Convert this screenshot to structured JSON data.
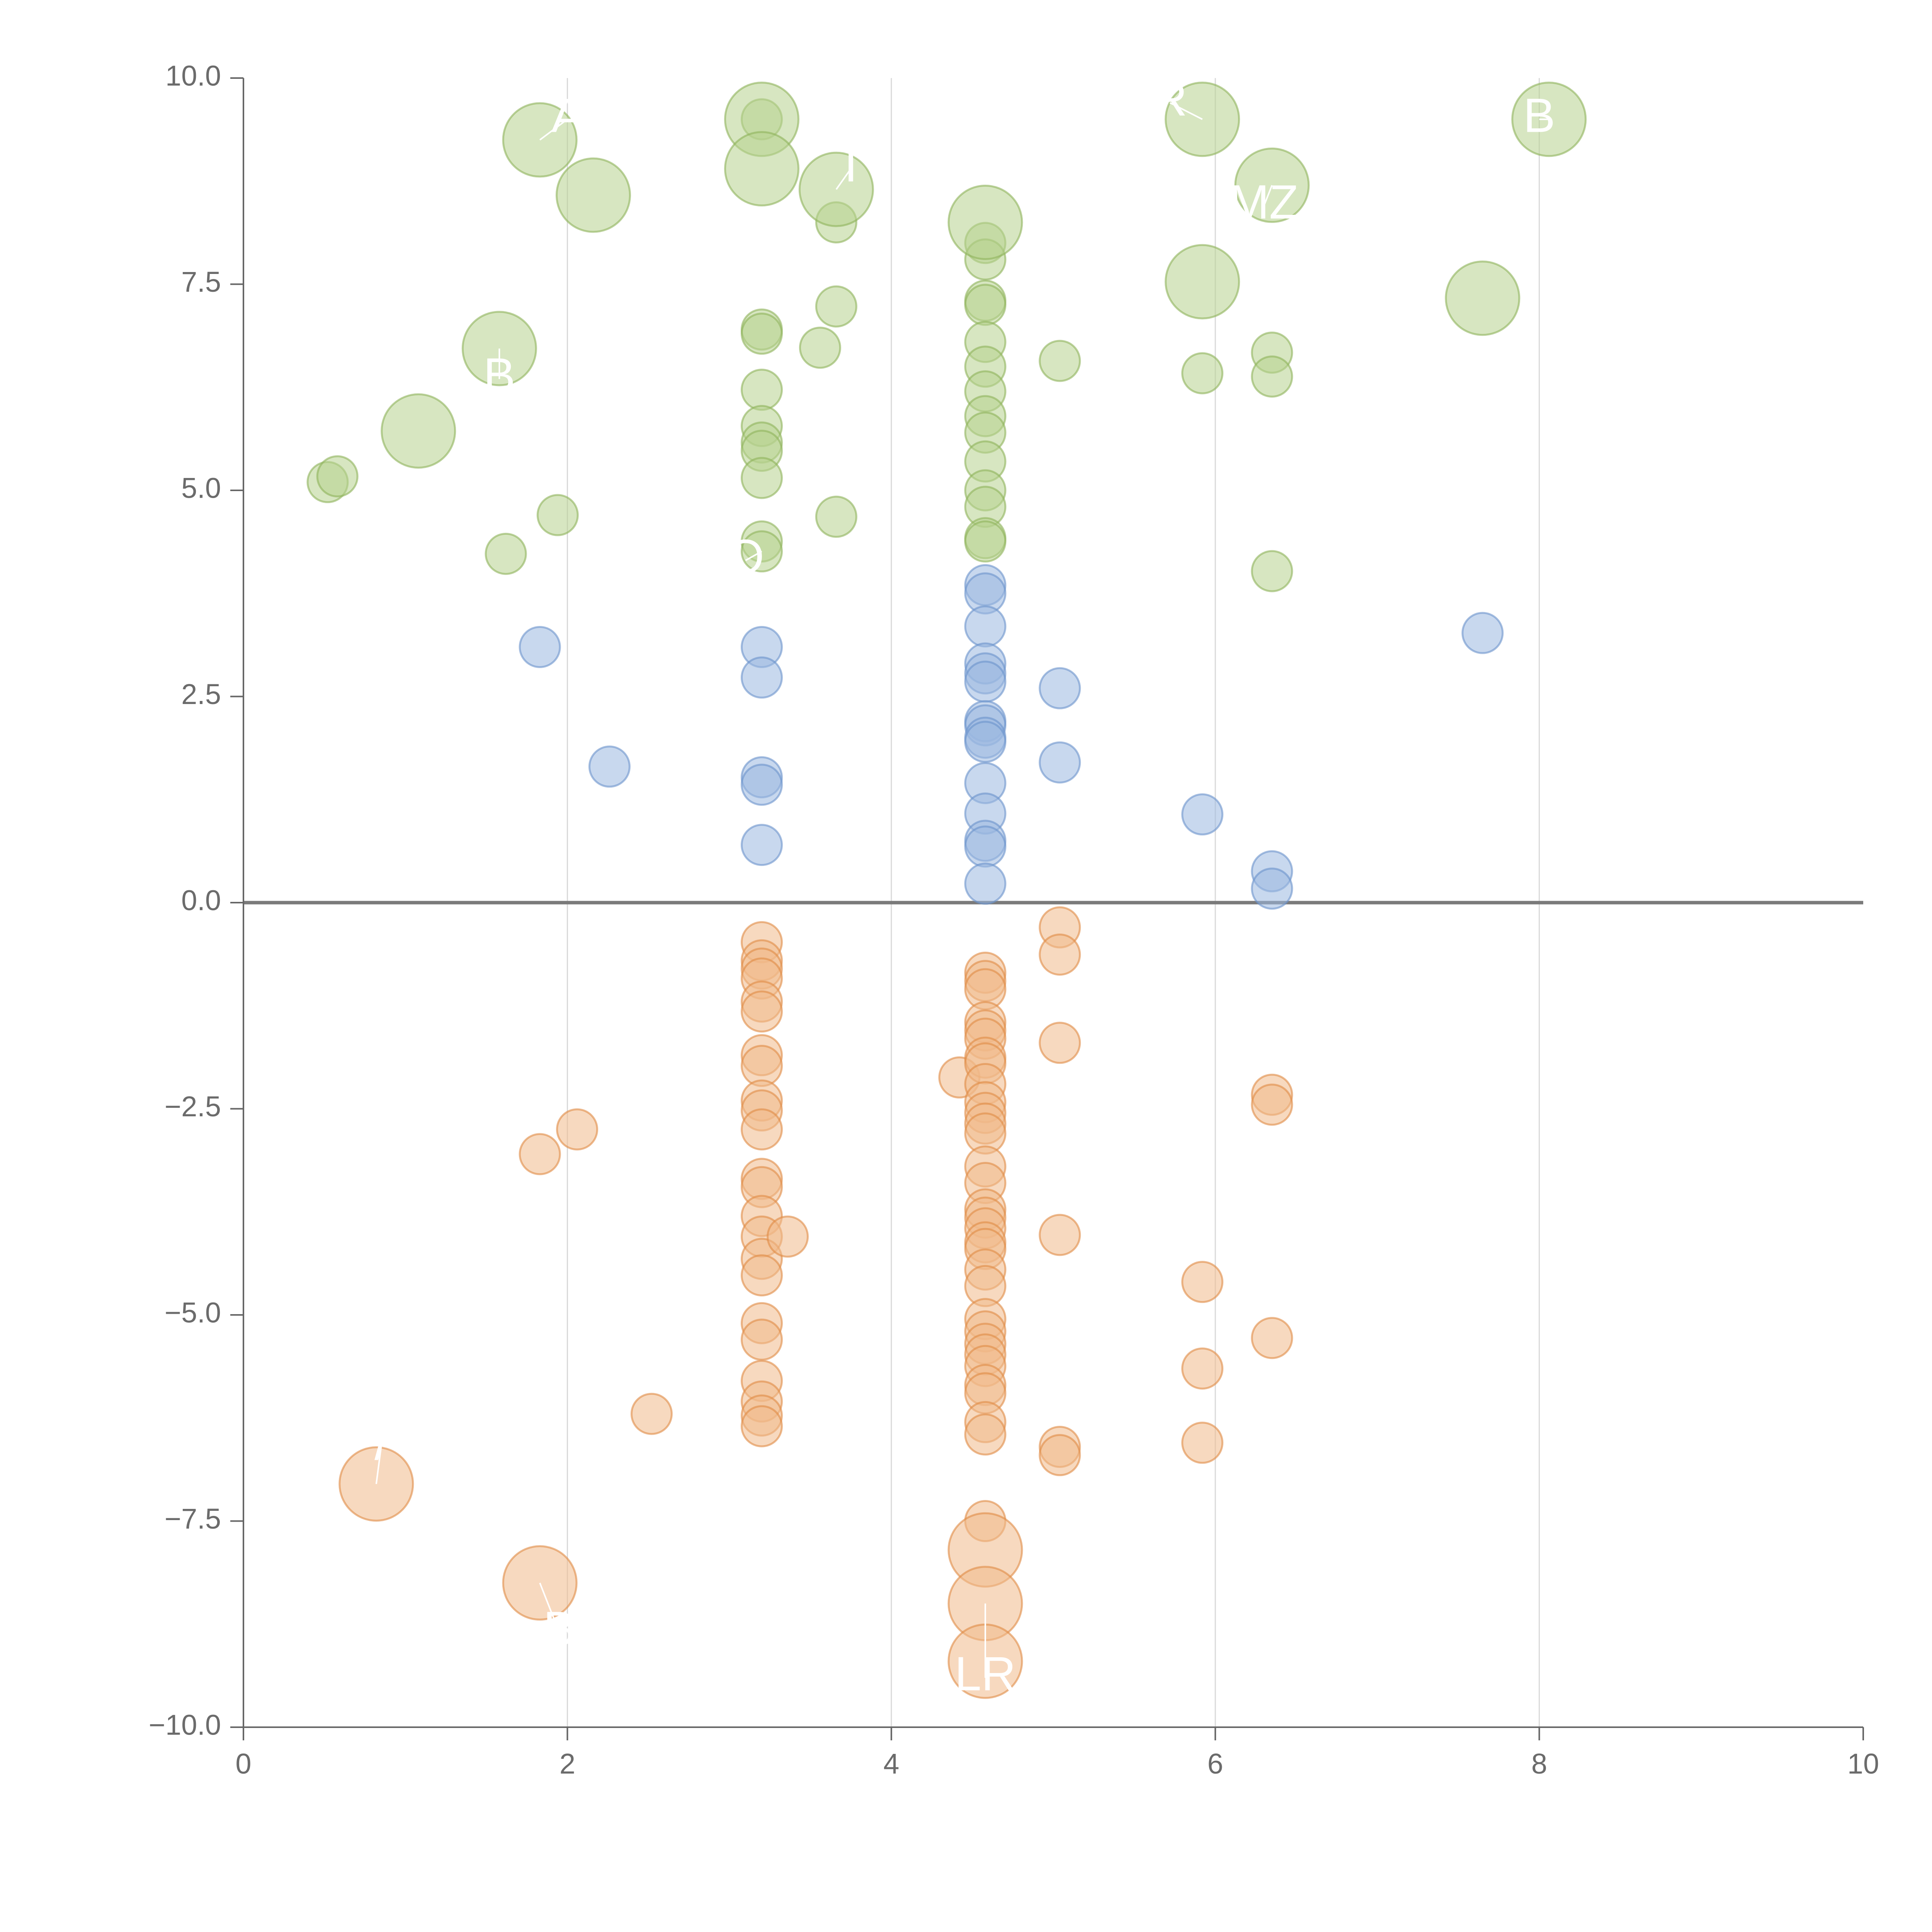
{
  "colors": {
    "background": "#ffffff",
    "axis": "#666666",
    "zero_line": "#7a7a7a",
    "grid": "#d9d9d9",
    "tick_text": "#6b6b6b",
    "label_text": "#ffffff",
    "leader_line": "#ffffff"
  },
  "chart_data": {
    "type": "scatter",
    "title": "",
    "xlabel": "",
    "ylabel": "",
    "xlim": [
      0,
      10
    ],
    "ylim": [
      -10,
      10
    ],
    "x_ticks": [
      0,
      2,
      4,
      6,
      8,
      10
    ],
    "x_tick_labels": [
      "0",
      "2",
      "4",
      "6",
      "8",
      "10"
    ],
    "y_ticks": [
      10,
      7.5,
      5,
      2.5,
      0,
      -2.5,
      -5,
      -7.5,
      -10
    ],
    "y_tick_labels": [
      "10.0",
      "7.5",
      "5.0",
      "2.5",
      "0.0",
      "−2.5",
      "−5.0",
      "−7.5",
      "−10.0"
    ],
    "vertical_gridlines_at": [
      2,
      4,
      6,
      8
    ],
    "zero_line": true,
    "legend": "none",
    "series": [
      {
        "name": "green",
        "color": "#8db35a",
        "fill": "#b7d28e",
        "points": [
          {
            "x": 1.83,
            "y": 9.25,
            "s": 2
          },
          {
            "x": 3.2,
            "y": 9.5,
            "s": 2
          },
          {
            "x": 3.2,
            "y": 8.9,
            "s": 2
          },
          {
            "x": 2.16,
            "y": 8.58,
            "s": 2
          },
          {
            "x": 3.66,
            "y": 8.65,
            "s": 2
          },
          {
            "x": 5.92,
            "y": 9.5,
            "s": 2
          },
          {
            "x": 8.06,
            "y": 9.5,
            "s": 2
          },
          {
            "x": 6.35,
            "y": 8.7,
            "s": 2
          },
          {
            "x": 4.58,
            "y": 8.25,
            "s": 2
          },
          {
            "x": 5.92,
            "y": 7.53,
            "s": 2
          },
          {
            "x": 7.65,
            "y": 7.33,
            "s": 2
          },
          {
            "x": 1.58,
            "y": 6.72,
            "s": 2
          },
          {
            "x": 1.08,
            "y": 5.72,
            "s": 2
          },
          {
            "x": 3.2,
            "y": 9.5,
            "s": 1
          },
          {
            "x": 3.66,
            "y": 8.25,
            "s": 1
          },
          {
            "x": 3.66,
            "y": 7.23,
            "s": 1
          },
          {
            "x": 3.56,
            "y": 6.73,
            "s": 1
          },
          {
            "x": 3.66,
            "y": 4.68,
            "s": 1
          },
          {
            "x": 3.2,
            "y": 6.95,
            "s": 1
          },
          {
            "x": 3.2,
            "y": 6.9,
            "s": 1
          },
          {
            "x": 3.2,
            "y": 6.22,
            "s": 1
          },
          {
            "x": 3.2,
            "y": 5.78,
            "s": 1
          },
          {
            "x": 3.2,
            "y": 5.58,
            "s": 1
          },
          {
            "x": 3.2,
            "y": 5.48,
            "s": 1
          },
          {
            "x": 3.2,
            "y": 5.15,
            "s": 1
          },
          {
            "x": 3.2,
            "y": 4.38,
            "s": 1
          },
          {
            "x": 3.2,
            "y": 4.26,
            "s": 1
          },
          {
            "x": 4.58,
            "y": 8.0,
            "s": 1
          },
          {
            "x": 4.58,
            "y": 7.8,
            "s": 1
          },
          {
            "x": 4.58,
            "y": 7.3,
            "s": 1
          },
          {
            "x": 4.58,
            "y": 7.25,
            "s": 1
          },
          {
            "x": 4.58,
            "y": 6.8,
            "s": 1
          },
          {
            "x": 4.58,
            "y": 6.5,
            "s": 1
          },
          {
            "x": 4.58,
            "y": 6.2,
            "s": 1
          },
          {
            "x": 4.58,
            "y": 5.9,
            "s": 1
          },
          {
            "x": 4.58,
            "y": 5.7,
            "s": 1
          },
          {
            "x": 4.58,
            "y": 5.35,
            "s": 1
          },
          {
            "x": 4.58,
            "y": 5.0,
            "s": 1
          },
          {
            "x": 4.58,
            "y": 4.8,
            "s": 1
          },
          {
            "x": 4.58,
            "y": 4.42,
            "s": 1
          },
          {
            "x": 4.58,
            "y": 4.38,
            "s": 1
          },
          {
            "x": 5.04,
            "y": 6.57,
            "s": 1
          },
          {
            "x": 5.92,
            "y": 6.42,
            "s": 1
          },
          {
            "x": 6.35,
            "y": 6.67,
            "s": 1
          },
          {
            "x": 6.35,
            "y": 6.38,
            "s": 1
          },
          {
            "x": 6.35,
            "y": 4.02,
            "s": 1
          },
          {
            "x": 1.94,
            "y": 4.7,
            "s": 1
          },
          {
            "x": 1.62,
            "y": 4.23,
            "s": 1
          },
          {
            "x": 0.52,
            "y": 5.1,
            "s": 1
          },
          {
            "x": 0.58,
            "y": 5.17,
            "s": 1
          }
        ]
      },
      {
        "name": "blue",
        "color": "#6a93cc",
        "fill": "#9ab8e0",
        "points": [
          {
            "x": 1.83,
            "y": 3.1,
            "s": 1
          },
          {
            "x": 2.26,
            "y": 1.65,
            "s": 1
          },
          {
            "x": 3.2,
            "y": 3.1,
            "s": 1
          },
          {
            "x": 3.2,
            "y": 2.73,
            "s": 1
          },
          {
            "x": 3.2,
            "y": 1.52,
            "s": 1
          },
          {
            "x": 3.2,
            "y": 1.43,
            "s": 1
          },
          {
            "x": 3.2,
            "y": 0.7,
            "s": 1
          },
          {
            "x": 4.58,
            "y": 3.85,
            "s": 1
          },
          {
            "x": 4.58,
            "y": 3.75,
            "s": 1
          },
          {
            "x": 4.58,
            "y": 3.35,
            "s": 1
          },
          {
            "x": 4.58,
            "y": 2.9,
            "s": 1
          },
          {
            "x": 4.58,
            "y": 2.78,
            "s": 1
          },
          {
            "x": 4.58,
            "y": 2.68,
            "s": 1
          },
          {
            "x": 4.58,
            "y": 2.2,
            "s": 1
          },
          {
            "x": 4.58,
            "y": 2.15,
            "s": 1
          },
          {
            "x": 4.58,
            "y": 2.0,
            "s": 1
          },
          {
            "x": 4.58,
            "y": 1.95,
            "s": 1
          },
          {
            "x": 4.58,
            "y": 1.45,
            "s": 1
          },
          {
            "x": 4.58,
            "y": 1.08,
            "s": 1
          },
          {
            "x": 4.58,
            "y": 0.75,
            "s": 1
          },
          {
            "x": 4.58,
            "y": 0.68,
            "s": 1
          },
          {
            "x": 4.58,
            "y": 0.23,
            "s": 1
          },
          {
            "x": 5.04,
            "y": 2.6,
            "s": 1
          },
          {
            "x": 5.04,
            "y": 1.7,
            "s": 1
          },
          {
            "x": 5.92,
            "y": 1.07,
            "s": 1
          },
          {
            "x": 6.35,
            "y": 0.38,
            "s": 1
          },
          {
            "x": 6.35,
            "y": 0.17,
            "s": 1
          },
          {
            "x": 7.65,
            "y": 3.27,
            "s": 1
          }
        ]
      },
      {
        "name": "orange",
        "color": "#e08a44",
        "fill": "#f0b98a",
        "points": [
          {
            "x": 0.82,
            "y": -7.05,
            "s": 2
          },
          {
            "x": 1.83,
            "y": -8.25,
            "s": 2
          },
          {
            "x": 4.58,
            "y": -7.85,
            "s": 2
          },
          {
            "x": 4.58,
            "y": -8.5,
            "s": 2
          },
          {
            "x": 4.58,
            "y": -9.2,
            "s": 2
          },
          {
            "x": 1.83,
            "y": -3.05,
            "s": 1
          },
          {
            "x": 2.06,
            "y": -2.75,
            "s": 1
          },
          {
            "x": 2.52,
            "y": -6.2,
            "s": 1
          },
          {
            "x": 3.2,
            "y": -0.48,
            "s": 1
          },
          {
            "x": 3.2,
            "y": -0.7,
            "s": 1
          },
          {
            "x": 3.2,
            "y": -0.8,
            "s": 1
          },
          {
            "x": 3.2,
            "y": -0.92,
            "s": 1
          },
          {
            "x": 3.2,
            "y": -1.2,
            "s": 1
          },
          {
            "x": 3.2,
            "y": -1.32,
            "s": 1
          },
          {
            "x": 3.2,
            "y": -1.85,
            "s": 1
          },
          {
            "x": 3.2,
            "y": -1.98,
            "s": 1
          },
          {
            "x": 3.2,
            "y": -2.4,
            "s": 1
          },
          {
            "x": 3.2,
            "y": -2.52,
            "s": 1
          },
          {
            "x": 3.2,
            "y": -2.75,
            "s": 1
          },
          {
            "x": 3.2,
            "y": -3.35,
            "s": 1
          },
          {
            "x": 3.2,
            "y": -3.45,
            "s": 1
          },
          {
            "x": 3.2,
            "y": -3.8,
            "s": 1
          },
          {
            "x": 3.2,
            "y": -4.05,
            "s": 1
          },
          {
            "x": 3.2,
            "y": -4.32,
            "s": 1
          },
          {
            "x": 3.2,
            "y": -4.52,
            "s": 1
          },
          {
            "x": 3.2,
            "y": -5.1,
            "s": 1
          },
          {
            "x": 3.2,
            "y": -5.3,
            "s": 1
          },
          {
            "x": 3.2,
            "y": -5.8,
            "s": 1
          },
          {
            "x": 3.2,
            "y": -6.05,
            "s": 1
          },
          {
            "x": 3.2,
            "y": -6.22,
            "s": 1
          },
          {
            "x": 3.2,
            "y": -6.35,
            "s": 1
          },
          {
            "x": 3.36,
            "y": -4.05,
            "s": 1
          },
          {
            "x": 4.42,
            "y": -2.12,
            "s": 1
          },
          {
            "x": 4.58,
            "y": -0.85,
            "s": 1
          },
          {
            "x": 4.58,
            "y": -0.95,
            "s": 1
          },
          {
            "x": 4.58,
            "y": -1.05,
            "s": 1
          },
          {
            "x": 4.58,
            "y": -1.45,
            "s": 1
          },
          {
            "x": 4.58,
            "y": -1.55,
            "s": 1
          },
          {
            "x": 4.58,
            "y": -1.65,
            "s": 1
          },
          {
            "x": 4.58,
            "y": -1.88,
            "s": 1
          },
          {
            "x": 4.58,
            "y": -1.95,
            "s": 1
          },
          {
            "x": 4.58,
            "y": -2.2,
            "s": 1
          },
          {
            "x": 4.58,
            "y": -2.42,
            "s": 1
          },
          {
            "x": 4.58,
            "y": -2.55,
            "s": 1
          },
          {
            "x": 4.58,
            "y": -2.68,
            "s": 1
          },
          {
            "x": 4.58,
            "y": -2.8,
            "s": 1
          },
          {
            "x": 4.58,
            "y": -3.2,
            "s": 1
          },
          {
            "x": 4.58,
            "y": -3.4,
            "s": 1
          },
          {
            "x": 4.58,
            "y": -3.72,
            "s": 1
          },
          {
            "x": 4.58,
            "y": -3.82,
            "s": 1
          },
          {
            "x": 4.58,
            "y": -3.95,
            "s": 1
          },
          {
            "x": 4.58,
            "y": -4.12,
            "s": 1
          },
          {
            "x": 4.58,
            "y": -4.2,
            "s": 1
          },
          {
            "x": 4.58,
            "y": -4.45,
            "s": 1
          },
          {
            "x": 4.58,
            "y": -4.65,
            "s": 1
          },
          {
            "x": 4.58,
            "y": -5.05,
            "s": 1
          },
          {
            "x": 4.58,
            "y": -5.2,
            "s": 1
          },
          {
            "x": 4.58,
            "y": -5.35,
            "s": 1
          },
          {
            "x": 4.58,
            "y": -5.48,
            "s": 1
          },
          {
            "x": 4.58,
            "y": -5.62,
            "s": 1
          },
          {
            "x": 4.58,
            "y": -5.85,
            "s": 1
          },
          {
            "x": 4.58,
            "y": -5.95,
            "s": 1
          },
          {
            "x": 4.58,
            "y": -6.3,
            "s": 1
          },
          {
            "x": 4.58,
            "y": -6.45,
            "s": 1
          },
          {
            "x": 4.58,
            "y": -7.5,
            "s": 1
          },
          {
            "x": 5.04,
            "y": -0.3,
            "s": 1
          },
          {
            "x": 5.04,
            "y": -0.63,
            "s": 1
          },
          {
            "x": 5.04,
            "y": -1.7,
            "s": 1
          },
          {
            "x": 5.04,
            "y": -4.03,
            "s": 1
          },
          {
            "x": 5.04,
            "y": -6.6,
            "s": 1
          },
          {
            "x": 5.04,
            "y": -6.7,
            "s": 1
          },
          {
            "x": 5.92,
            "y": -4.6,
            "s": 1
          },
          {
            "x": 5.92,
            "y": -5.65,
            "s": 1
          },
          {
            "x": 5.92,
            "y": -6.55,
            "s": 1
          },
          {
            "x": 6.35,
            "y": -2.33,
            "s": 1
          },
          {
            "x": 6.35,
            "y": -2.45,
            "s": 1
          },
          {
            "x": 6.35,
            "y": -5.28,
            "s": 1
          }
        ]
      }
    ],
    "annotations": [
      {
        "text": "A",
        "x": 2.0,
        "y": 9.5,
        "line_to": [
          1.83,
          9.25
        ]
      },
      {
        "text": "R",
        "x": 5.72,
        "y": 9.7,
        "line_to": [
          5.92,
          9.5
        ]
      },
      {
        "text": "B",
        "x": 8.0,
        "y": 9.5,
        "line_to": [
          8.06,
          9.5
        ]
      },
      {
        "text": "I",
        "x": 3.75,
        "y": 8.9,
        "line_to": [
          3.66,
          8.65
        ]
      },
      {
        "text": "MZ",
        "x": 6.3,
        "y": 8.45,
        "line_to": [
          6.35,
          8.7
        ]
      },
      {
        "text": "B",
        "x": 1.58,
        "y": 6.35,
        "line_to": [
          1.58,
          6.72
        ]
      },
      {
        "text": "O",
        "x": 3.1,
        "y": 4.15,
        "line_to": [
          3.2,
          4.26
        ]
      },
      {
        "text": "/",
        "x": 0.85,
        "y": -6.6,
        "line_to": [
          0.82,
          -7.05
        ]
      },
      {
        "text": "B",
        "x": 1.95,
        "y": -8.85,
        "line_to": [
          1.83,
          -8.25
        ]
      },
      {
        "text": "LR",
        "x": 4.58,
        "y": -9.4,
        "line_to": [
          4.58,
          -8.5
        ]
      }
    ]
  }
}
